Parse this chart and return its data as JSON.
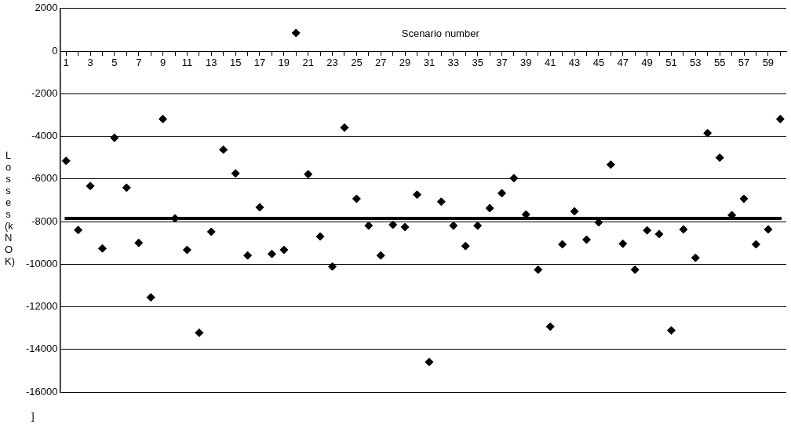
{
  "chart_data": {
    "type": "scatter",
    "xlabel": "Scenario number",
    "ylabel": "Losses (kNOK)",
    "x": [
      1,
      2,
      3,
      4,
      5,
      6,
      7,
      8,
      9,
      10,
      11,
      12,
      13,
      14,
      15,
      16,
      17,
      18,
      19,
      20,
      21,
      22,
      23,
      24,
      25,
      26,
      27,
      28,
      29,
      30,
      31,
      32,
      33,
      34,
      35,
      36,
      37,
      38,
      39,
      40,
      41,
      42,
      43,
      44,
      45,
      46,
      47,
      48,
      49,
      50,
      51,
      52,
      53,
      54,
      55,
      56,
      57,
      58,
      59,
      60
    ],
    "series": [
      {
        "color": "#000000",
        "values": [
          -5150,
          -8400,
          -6330,
          -9260,
          -4070,
          -6410,
          -9000,
          -11560,
          -3190,
          -7850,
          -9330,
          -13220,
          -8480,
          -4630,
          -5740,
          -9590,
          -7330,
          -9520,
          -9330,
          850,
          -5780,
          -8700,
          -10110,
          -3590,
          -6930,
          -8190,
          -9590,
          -8150,
          -8260,
          -6740,
          -14590,
          -7070,
          -8190,
          -9150,
          -8190,
          -7370,
          -6670,
          -5960,
          -7670,
          -10260,
          -12930,
          -9070,
          -7520,
          -8850,
          -8040,
          -5330,
          -9040,
          -10260,
          -8410,
          -8590,
          -13110,
          -8370,
          -9700,
          -3850,
          -5000,
          -7700,
          -6930,
          -9070,
          -8370,
          -3190
        ]
      }
    ],
    "marker": "diamond",
    "xlim": [
      0.5,
      60.5
    ],
    "xticks": [
      1,
      {
        "value": 2,
        "label": null
      },
      3,
      {
        "value": 4,
        "label": null
      },
      5,
      {
        "value": 6,
        "label": null
      },
      7,
      {
        "value": 8,
        "label": null
      },
      9,
      {
        "value": 10,
        "label": null
      },
      11,
      {
        "value": 12,
        "label": null
      },
      13,
      {
        "value": 14,
        "label": null
      },
      15,
      {
        "value": 16,
        "label": null
      },
      17,
      {
        "value": 18,
        "label": null
      },
      19,
      {
        "value": 20,
        "label": null
      },
      21,
      {
        "value": 22,
        "label": null
      },
      23,
      {
        "value": 24,
        "label": null
      },
      25,
      {
        "value": 26,
        "label": null
      },
      27,
      {
        "value": 28,
        "label": null
      },
      29,
      {
        "value": 30,
        "label": null
      },
      31,
      {
        "value": 32,
        "label": null
      },
      33,
      {
        "value": 34,
        "label": null
      },
      35,
      {
        "value": 36,
        "label": null
      },
      37,
      {
        "value": 38,
        "label": null
      },
      39,
      {
        "value": 40,
        "label": null
      },
      41,
      {
        "value": 42,
        "label": null
      },
      43,
      {
        "value": 44,
        "label": null
      },
      45,
      {
        "value": 46,
        "label": null
      },
      47,
      {
        "value": 48,
        "label": null
      },
      49,
      {
        "value": 50,
        "label": null
      },
      51,
      {
        "value": 52,
        "label": null
      },
      53,
      {
        "value": 54,
        "label": null
      },
      55,
      {
        "value": 56,
        "label": null
      },
      57,
      {
        "value": 58,
        "label": null
      },
      59,
      {
        "value": 60,
        "label": null
      }
    ],
    "ylim": [
      -16000,
      2000
    ],
    "yticks": [
      -16000,
      -14000,
      -12000,
      -10000,
      -8000,
      -6000,
      -4000,
      -2000,
      0,
      2000
    ],
    "grid": "y",
    "legend": false,
    "ref_lines": [
      {
        "axis": "y",
        "value": -7850,
        "color": "#000000"
      }
    ],
    "annotations": [
      "]"
    ]
  }
}
